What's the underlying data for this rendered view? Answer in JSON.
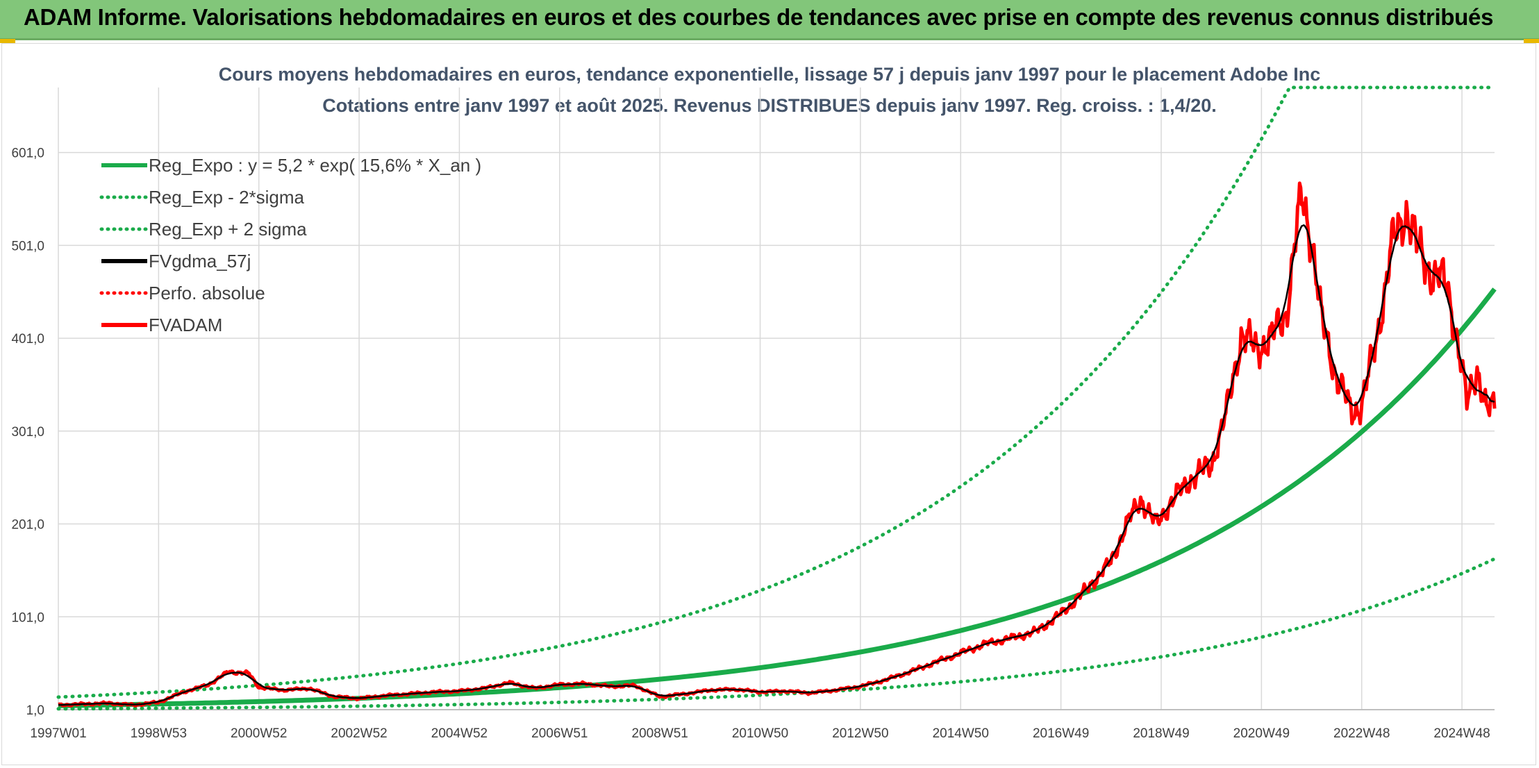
{
  "header": {
    "title": "ADAM Informe. Valorisations hebdomadaires en euros et des courbes de tendances avec prise en compte des revenus connus distribués"
  },
  "colors": {
    "header_bg": "#82c67a",
    "green": "#1aab4a",
    "black": "#000000",
    "red": "#ff0000",
    "grid": "#d9d9d9"
  },
  "chart_data": {
    "type": "line",
    "title": "Cours moyens hebdomadaires en euros, tendance exponentielle, lissage 57 j depuis janv 1997 pour le placement Adobe Inc",
    "subtitle": "Cotations entre janv 1997 et août 2025. Revenus DISTRIBUES depuis janv 1997. Reg. croiss. : 1,4/20.",
    "x_range": [
      1997.0,
      2025.65
    ],
    "ylim": [
      1,
      671
    ],
    "y_ticks": [
      {
        "value": 1,
        "label": "1,0"
      },
      {
        "value": 101,
        "label": "101,0"
      },
      {
        "value": 201,
        "label": "201,0"
      },
      {
        "value": 301,
        "label": "301,0"
      },
      {
        "value": 401,
        "label": "401,0"
      },
      {
        "value": 501,
        "label": "501,0"
      },
      {
        "value": 601,
        "label": "601,0"
      }
    ],
    "x_ticks": [
      {
        "value": 1997.0,
        "label": "1997W01"
      },
      {
        "value": 1999.0,
        "label": "1998W53"
      },
      {
        "value": 2001.0,
        "label": "2000W52"
      },
      {
        "value": 2003.0,
        "label": "2002W52"
      },
      {
        "value": 2005.0,
        "label": "2004W52"
      },
      {
        "value": 2007.0,
        "label": "2006W51"
      },
      {
        "value": 2009.0,
        "label": "2008W51"
      },
      {
        "value": 2011.0,
        "label": "2010W50"
      },
      {
        "value": 2013.0,
        "label": "2012W50"
      },
      {
        "value": 2015.0,
        "label": "2014W50"
      },
      {
        "value": 2017.0,
        "label": "2016W49"
      },
      {
        "value": 2019.0,
        "label": "2018W49"
      },
      {
        "value": 2021.0,
        "label": "2020W49"
      },
      {
        "value": 2023.0,
        "label": "2022W48"
      },
      {
        "value": 2025.0,
        "label": "2024W48"
      }
    ],
    "grid": true,
    "legend_position": "top-left",
    "regression": {
      "a": 5.2,
      "rate": 0.156,
      "lower_factor": 0.36,
      "upper_factor": 2.8,
      "clip": 671
    },
    "series": [
      {
        "name": "Reg_Expo : y = 5,2 * exp( 15,6% *  X_an )",
        "color": "#1aab4a",
        "style": "solid",
        "kind": "reg"
      },
      {
        "name": "Reg_Exp - 2*sigma",
        "color": "#1aab4a",
        "style": "dotted",
        "kind": "reg_low"
      },
      {
        "name": "Reg_Exp + 2 sigma",
        "color": "#1aab4a",
        "style": "dotted",
        "kind": "reg_high"
      },
      {
        "name": "FVgdma_57j",
        "color": "#000000",
        "style": "solid",
        "kind": "smooth"
      },
      {
        "name": "Perfo. absolue",
        "color": "#ff0000",
        "style": "dotted",
        "kind": "none"
      },
      {
        "name": "FVADAM",
        "color": "#ff0000",
        "style": "solid",
        "kind": "price"
      }
    ],
    "price_points": [
      [
        1997.0,
        6
      ],
      [
        1997.5,
        7
      ],
      [
        1998.0,
        8
      ],
      [
        1998.5,
        6
      ],
      [
        1999.0,
        9
      ],
      [
        1999.5,
        20
      ],
      [
        2000.0,
        28
      ],
      [
        2000.4,
        42
      ],
      [
        2000.8,
        40
      ],
      [
        2001.0,
        25
      ],
      [
        2001.5,
        22
      ],
      [
        2002.0,
        24
      ],
      [
        2002.5,
        15
      ],
      [
        2003.0,
        13
      ],
      [
        2003.5,
        16
      ],
      [
        2004.0,
        18
      ],
      [
        2004.5,
        20
      ],
      [
        2005.0,
        21
      ],
      [
        2005.5,
        24
      ],
      [
        2006.0,
        30
      ],
      [
        2006.5,
        24
      ],
      [
        2007.0,
        28
      ],
      [
        2007.5,
        29
      ],
      [
        2008.0,
        26
      ],
      [
        2008.5,
        27
      ],
      [
        2009.0,
        15
      ],
      [
        2009.5,
        18
      ],
      [
        2010.0,
        22
      ],
      [
        2010.5,
        23
      ],
      [
        2011.0,
        20
      ],
      [
        2011.5,
        21
      ],
      [
        2012.0,
        19
      ],
      [
        2012.5,
        22
      ],
      [
        2013.0,
        26
      ],
      [
        2013.5,
        33
      ],
      [
        2014.0,
        42
      ],
      [
        2014.5,
        52
      ],
      [
        2015.0,
        62
      ],
      [
        2015.5,
        72
      ],
      [
        2016.0,
        78
      ],
      [
        2016.5,
        85
      ],
      [
        2017.0,
        104
      ],
      [
        2017.5,
        130
      ],
      [
        2018.0,
        160
      ],
      [
        2018.3,
        200
      ],
      [
        2018.6,
        228
      ],
      [
        2018.9,
        200
      ],
      [
        2019.2,
        225
      ],
      [
        2019.6,
        250
      ],
      [
        2020.0,
        265
      ],
      [
        2020.3,
        320
      ],
      [
        2020.6,
        405
      ],
      [
        2020.9,
        390
      ],
      [
        2021.2,
        400
      ],
      [
        2021.5,
        430
      ],
      [
        2021.8,
        555
      ],
      [
        2022.0,
        510
      ],
      [
        2022.2,
        420
      ],
      [
        2022.5,
        360
      ],
      [
        2022.8,
        320
      ],
      [
        2023.0,
        330
      ],
      [
        2023.3,
        400
      ],
      [
        2023.6,
        500
      ],
      [
        2023.9,
        540
      ],
      [
        2024.1,
        500
      ],
      [
        2024.4,
        470
      ],
      [
        2024.7,
        460
      ],
      [
        2024.9,
        400
      ],
      [
        2025.1,
        330
      ],
      [
        2025.3,
        370
      ],
      [
        2025.5,
        320
      ],
      [
        2025.65,
        330
      ]
    ]
  }
}
